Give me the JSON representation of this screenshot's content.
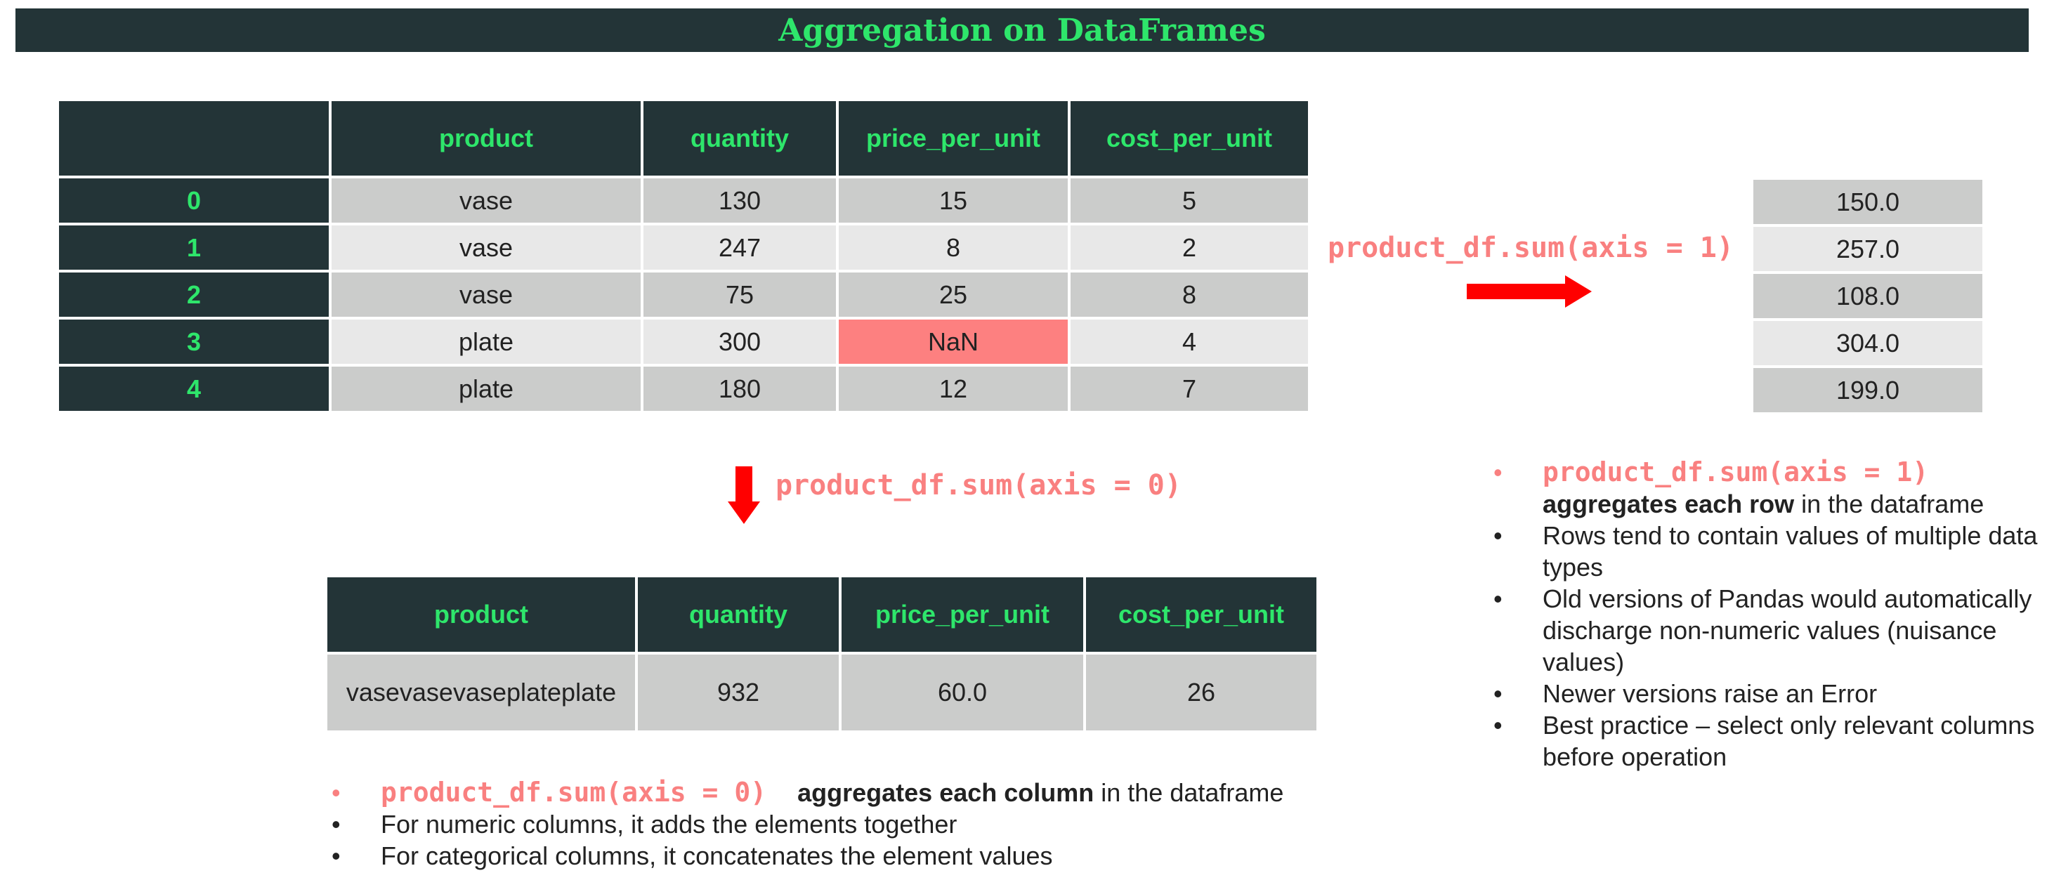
{
  "title": "Aggregation on DataFrames",
  "main_table": {
    "columns": [
      "",
      "product",
      "quantity",
      "price_per_unit",
      "cost_per_unit"
    ],
    "rows": [
      [
        "0",
        "vase",
        "130",
        "15",
        "5"
      ],
      [
        "1",
        "vase",
        "247",
        "8",
        "2"
      ],
      [
        "2",
        "vase",
        "75",
        "25",
        "8"
      ],
      [
        "3",
        "plate",
        "300",
        "NaN",
        "4"
      ],
      [
        "4",
        "plate",
        "180",
        "12",
        "7"
      ]
    ]
  },
  "axis1_label": "product_df.sum(axis = 1)",
  "axis1_result": [
    "150.0",
    "257.0",
    "108.0",
    "304.0",
    "199.0"
  ],
  "axis0_label": "product_df.sum(axis = 0)",
  "axis0_table": {
    "columns": [
      "product",
      "quantity",
      "price_per_unit",
      "cost_per_unit"
    ],
    "values": [
      "vasevasevaseplateplate",
      "932",
      "60.0",
      "26"
    ]
  },
  "bottom_bullets": {
    "b1_code": "product_df.sum(axis = 0)",
    "b1_bold": "aggregates each column",
    "b1_rest": " in the dataframe",
    "b2": "For numeric columns, it adds the elements together",
    "b3": "For categorical columns, it concatenates the element values"
  },
  "right_bullets": {
    "b1_code": "product_df.sum(axis = 1)",
    "b1_bold": "aggregates each row",
    "b1_rest": " in the dataframe",
    "b2": "Rows tend to contain values of multiple data types",
    "b3": "Old versions of Pandas would automatically discharge non-numeric values (nuisance values)",
    "b4": "Newer versions raise an Error",
    "b5": "Best practice – select only relevant columns before operation"
  },
  "bullet_char": "•",
  "colors": {
    "header_bg": "#233437",
    "header_text": "#2ee66b",
    "row_dark": "#cbcccb",
    "row_light": "#e8e8e8",
    "nan_highlight": "#fd8080",
    "arrow": "#ff0000",
    "code_text": "#f98080"
  }
}
